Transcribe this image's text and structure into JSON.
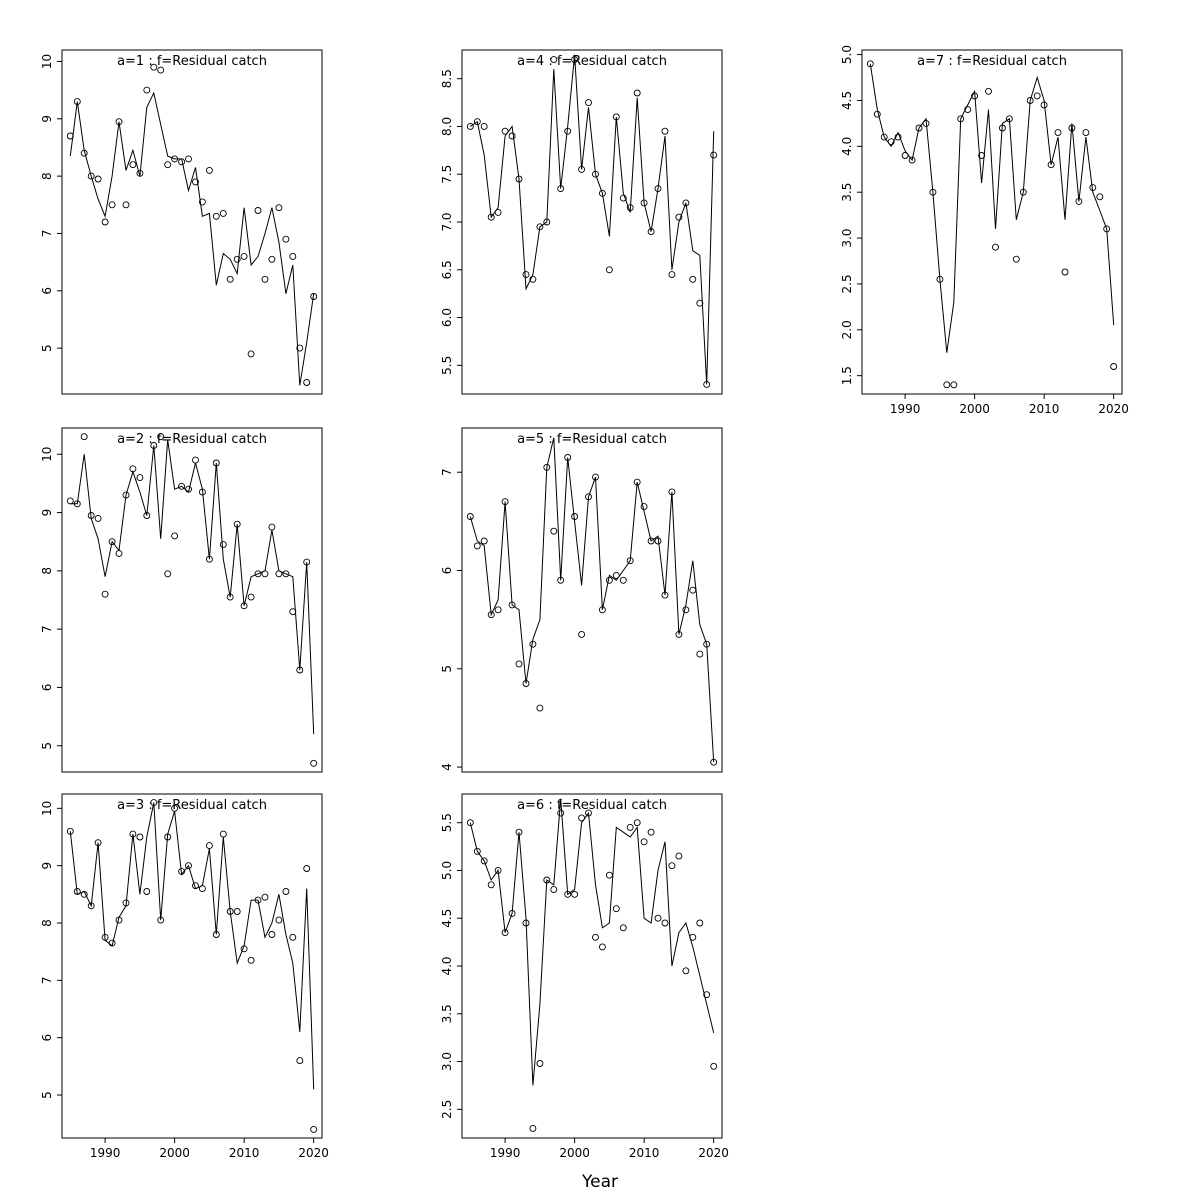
{
  "figure": {
    "xlabel": "Year",
    "title_color": "#7d7d7d",
    "axis_color": "#000000",
    "point_color": "#000000",
    "line_color": "#000000",
    "xticks": [
      1990,
      2000,
      2010,
      2020
    ],
    "xlim": [
      1983.8,
      2021.2
    ],
    "years": [
      1985,
      1986,
      1987,
      1988,
      1989,
      1990,
      1991,
      1992,
      1993,
      1994,
      1995,
      1996,
      1997,
      1998,
      1999,
      2000,
      2001,
      2002,
      2003,
      2004,
      2005,
      2006,
      2007,
      2008,
      2009,
      2010,
      2011,
      2012,
      2013,
      2014,
      2015,
      2016,
      2017,
      2018,
      2019,
      2020
    ]
  },
  "chart_data": [
    {
      "id": "a1",
      "type": "line",
      "title": "a=1 : f=Residual catch",
      "show_x_labels": false,
      "ylim": [
        4.2,
        10.2
      ],
      "ytick_values": [
        5,
        6,
        7,
        8,
        9,
        10
      ],
      "ytick_labels": [
        "5",
        "6",
        "7",
        "8",
        "9",
        "10"
      ],
      "series": [
        {
          "name": "observed",
          "style": "points",
          "values": [
            8.7,
            9.3,
            8.4,
            8.0,
            7.95,
            7.2,
            7.5,
            8.95,
            7.5,
            8.2,
            8.05,
            9.5,
            9.9,
            9.85,
            8.2,
            8.3,
            8.25,
            8.3,
            7.9,
            7.55,
            8.1,
            7.3,
            7.35,
            6.2,
            6.55,
            6.6,
            4.9,
            7.4,
            6.2,
            6.55,
            7.45,
            6.9,
            6.6,
            5.0,
            4.4,
            5.9
          ]
        },
        {
          "name": "fitted",
          "style": "line",
          "values": [
            8.35,
            9.3,
            8.45,
            8.0,
            7.6,
            7.3,
            8.0,
            8.95,
            8.1,
            8.45,
            8.0,
            9.2,
            9.45,
            8.9,
            8.35,
            8.3,
            8.3,
            7.75,
            8.15,
            7.3,
            7.35,
            6.1,
            6.65,
            6.55,
            6.3,
            7.45,
            6.45,
            6.6,
            7.0,
            7.45,
            6.85,
            5.95,
            6.45,
            4.35,
            5.1,
            5.95
          ]
        }
      ]
    },
    {
      "id": "a2",
      "type": "line",
      "title": "a=2 : f=Residual catch",
      "show_x_labels": false,
      "ylim": [
        4.55,
        10.45
      ],
      "ytick_values": [
        5,
        6,
        7,
        8,
        9,
        10
      ],
      "ytick_labels": [
        "5",
        "6",
        "7",
        "8",
        "9",
        "10"
      ],
      "series": [
        {
          "name": "observed",
          "style": "points",
          "values": [
            9.2,
            9.15,
            10.3,
            8.95,
            8.9,
            7.6,
            8.5,
            8.3,
            9.3,
            9.75,
            9.6,
            8.95,
            10.15,
            10.3,
            7.95,
            8.6,
            9.45,
            9.4,
            9.9,
            9.35,
            8.2,
            9.85,
            8.45,
            7.55,
            8.8,
            7.4,
            7.55,
            7.95,
            7.95,
            8.75,
            7.95,
            7.95,
            7.3,
            6.3,
            8.15,
            4.7
          ]
        },
        {
          "name": "fitted",
          "style": "line",
          "values": [
            9.15,
            9.15,
            10.0,
            8.9,
            8.55,
            7.9,
            8.5,
            8.35,
            9.3,
            9.7,
            9.35,
            8.95,
            10.15,
            8.55,
            10.25,
            9.4,
            9.45,
            9.35,
            9.85,
            9.4,
            8.2,
            9.85,
            8.2,
            7.55,
            8.8,
            7.4,
            7.9,
            7.95,
            8.0,
            8.7,
            8.0,
            7.95,
            7.9,
            6.3,
            8.15,
            5.2
          ]
        }
      ]
    },
    {
      "id": "a3",
      "type": "line",
      "title": "a=3 : f=Residual catch",
      "show_x_labels": true,
      "ylim": [
        4.25,
        10.25
      ],
      "ytick_values": [
        5,
        6,
        7,
        8,
        9,
        10
      ],
      "ytick_labels": [
        "5",
        "6",
        "7",
        "8",
        "9",
        "10"
      ],
      "series": [
        {
          "name": "observed",
          "style": "points",
          "values": [
            9.6,
            8.55,
            8.5,
            8.3,
            9.4,
            7.75,
            7.65,
            8.05,
            8.35,
            9.55,
            9.5,
            8.55,
            10.1,
            8.05,
            9.5,
            10.0,
            8.9,
            9.0,
            8.65,
            8.6,
            9.35,
            7.8,
            9.55,
            8.2,
            8.2,
            7.55,
            7.35,
            8.4,
            8.45,
            7.8,
            8.05,
            8.55,
            7.75,
            5.6,
            8.95,
            4.4
          ]
        },
        {
          "name": "fitted",
          "style": "line",
          "values": [
            9.6,
            8.5,
            8.55,
            8.3,
            9.4,
            7.7,
            7.6,
            8.1,
            8.3,
            9.55,
            8.5,
            9.5,
            10.1,
            8.05,
            9.55,
            9.95,
            8.85,
            9.0,
            8.6,
            8.65,
            9.3,
            7.8,
            9.5,
            8.2,
            7.3,
            7.6,
            8.4,
            8.4,
            7.75,
            8.0,
            8.5,
            7.8,
            7.3,
            6.1,
            8.6,
            5.1
          ]
        }
      ]
    },
    {
      "id": "a4",
      "type": "line",
      "title": "a=4 : f=Residual catch",
      "show_x_labels": false,
      "ylim": [
        5.2,
        8.8
      ],
      "ytick_values": [
        5.5,
        6.0,
        6.5,
        7.0,
        7.5,
        8.0,
        8.5
      ],
      "ytick_labels": [
        "5.5",
        "6.0",
        "6.5",
        "7.0",
        "7.5",
        "8.0",
        "8.5"
      ],
      "series": [
        {
          "name": "observed",
          "style": "points",
          "values": [
            8.0,
            8.05,
            8.0,
            7.05,
            7.1,
            7.95,
            7.9,
            7.45,
            6.45,
            6.4,
            6.95,
            7.0,
            8.7,
            7.35,
            7.95,
            8.7,
            7.55,
            8.25,
            7.5,
            7.3,
            6.5,
            8.1,
            7.25,
            7.15,
            8.35,
            7.2,
            6.9,
            7.35,
            7.95,
            6.45,
            7.05,
            7.2,
            6.4,
            6.15,
            5.3,
            7.7
          ]
        },
        {
          "name": "fitted",
          "style": "line",
          "values": [
            8.0,
            8.05,
            7.7,
            7.05,
            7.15,
            7.9,
            8.0,
            7.45,
            6.3,
            6.45,
            6.95,
            7.0,
            8.6,
            7.35,
            8.0,
            8.75,
            7.55,
            8.2,
            7.5,
            7.3,
            6.85,
            8.1,
            7.3,
            7.1,
            8.3,
            7.2,
            6.9,
            7.35,
            7.9,
            6.5,
            7.0,
            7.2,
            6.7,
            6.65,
            5.3,
            7.95
          ]
        }
      ]
    },
    {
      "id": "a5",
      "type": "line",
      "title": "a=5 : f=Residual catch",
      "show_x_labels": false,
      "ylim": [
        3.95,
        7.45
      ],
      "ytick_values": [
        4,
        5,
        6,
        7
      ],
      "ytick_labels": [
        "4",
        "5",
        "6",
        "7"
      ],
      "series": [
        {
          "name": "observed",
          "style": "points",
          "values": [
            6.55,
            6.25,
            6.3,
            5.55,
            5.6,
            6.7,
            5.65,
            5.05,
            4.85,
            5.25,
            4.6,
            7.05,
            6.4,
            5.9,
            7.15,
            6.55,
            5.35,
            6.75,
            6.95,
            5.6,
            5.9,
            5.95,
            5.9,
            6.1,
            6.9,
            6.65,
            6.3,
            6.3,
            5.75,
            6.8,
            5.35,
            5.6,
            5.8,
            5.15,
            5.25,
            4.05
          ]
        },
        {
          "name": "fitted",
          "style": "line",
          "values": [
            6.55,
            6.3,
            6.25,
            5.55,
            5.7,
            6.7,
            5.65,
            5.6,
            4.85,
            5.3,
            5.5,
            7.05,
            7.35,
            5.9,
            7.15,
            6.5,
            5.85,
            6.75,
            6.95,
            5.6,
            5.95,
            5.9,
            6.0,
            6.1,
            6.9,
            6.6,
            6.3,
            6.35,
            5.75,
            6.8,
            5.35,
            5.65,
            6.1,
            5.45,
            5.25,
            4.05
          ]
        }
      ]
    },
    {
      "id": "a6",
      "type": "line",
      "title": "a=6 : f=Residual catch",
      "show_x_labels": true,
      "ylim": [
        2.2,
        5.8
      ],
      "ytick_values": [
        2.5,
        3.0,
        3.5,
        4.0,
        4.5,
        5.0,
        5.5
      ],
      "ytick_labels": [
        "2.5",
        "3.0",
        "3.5",
        "4.0",
        "4.5",
        "5.0",
        "5.5"
      ],
      "series": [
        {
          "name": "observed",
          "style": "points",
          "values": [
            5.5,
            5.2,
            5.1,
            4.85,
            5.0,
            4.35,
            4.55,
            5.4,
            4.45,
            2.3,
            2.98,
            4.9,
            4.8,
            5.6,
            4.75,
            4.75,
            5.55,
            5.6,
            4.3,
            4.2,
            4.95,
            4.6,
            4.4,
            5.45,
            5.5,
            5.3,
            5.4,
            4.5,
            4.45,
            5.05,
            5.15,
            3.95,
            4.3,
            4.45,
            3.7,
            2.95
          ]
        },
        {
          "name": "fitted",
          "style": "line",
          "values": [
            5.5,
            5.2,
            5.1,
            4.9,
            5.0,
            4.35,
            4.55,
            5.4,
            4.5,
            2.75,
            3.6,
            4.9,
            4.85,
            5.75,
            4.75,
            4.8,
            5.5,
            5.6,
            4.85,
            4.4,
            4.45,
            5.45,
            5.4,
            5.35,
            5.45,
            4.5,
            4.45,
            5.0,
            5.3,
            4.0,
            4.35,
            4.45,
            4.2,
            3.9,
            3.6,
            3.3
          ]
        }
      ]
    },
    {
      "id": "a7",
      "type": "line",
      "title": "a=7 : f=Residual catch",
      "show_x_labels": true,
      "ylim": [
        1.3,
        5.05
      ],
      "ytick_values": [
        1.5,
        2.0,
        2.5,
        3.0,
        3.5,
        4.0,
        4.5,
        5.0
      ],
      "ytick_labels": [
        "1.5",
        "2.0",
        "2.5",
        "3.0",
        "3.5",
        "4.0",
        "4.5",
        "5.0"
      ],
      "series": [
        {
          "name": "observed",
          "style": "points",
          "values": [
            4.9,
            4.35,
            4.1,
            4.05,
            4.1,
            3.9,
            3.85,
            4.2,
            4.25,
            3.5,
            2.55,
            1.4,
            1.4,
            4.3,
            4.4,
            4.55,
            3.9,
            4.6,
            2.9,
            4.2,
            4.3,
            2.77,
            3.5,
            4.5,
            4.55,
            4.45,
            3.8,
            4.15,
            2.63,
            4.2,
            3.4,
            4.15,
            3.55,
            3.45,
            3.1,
            1.6
          ]
        },
        {
          "name": "fitted",
          "style": "line",
          "values": [
            4.9,
            4.4,
            4.1,
            4.0,
            4.15,
            3.95,
            3.85,
            4.2,
            4.3,
            3.5,
            2.55,
            1.75,
            2.3,
            4.3,
            4.45,
            4.6,
            3.6,
            4.4,
            3.1,
            4.25,
            4.3,
            3.2,
            3.5,
            4.5,
            4.75,
            4.5,
            3.8,
            4.1,
            3.2,
            4.25,
            3.4,
            4.1,
            3.5,
            3.3,
            3.1,
            2.05
          ]
        }
      ]
    }
  ]
}
